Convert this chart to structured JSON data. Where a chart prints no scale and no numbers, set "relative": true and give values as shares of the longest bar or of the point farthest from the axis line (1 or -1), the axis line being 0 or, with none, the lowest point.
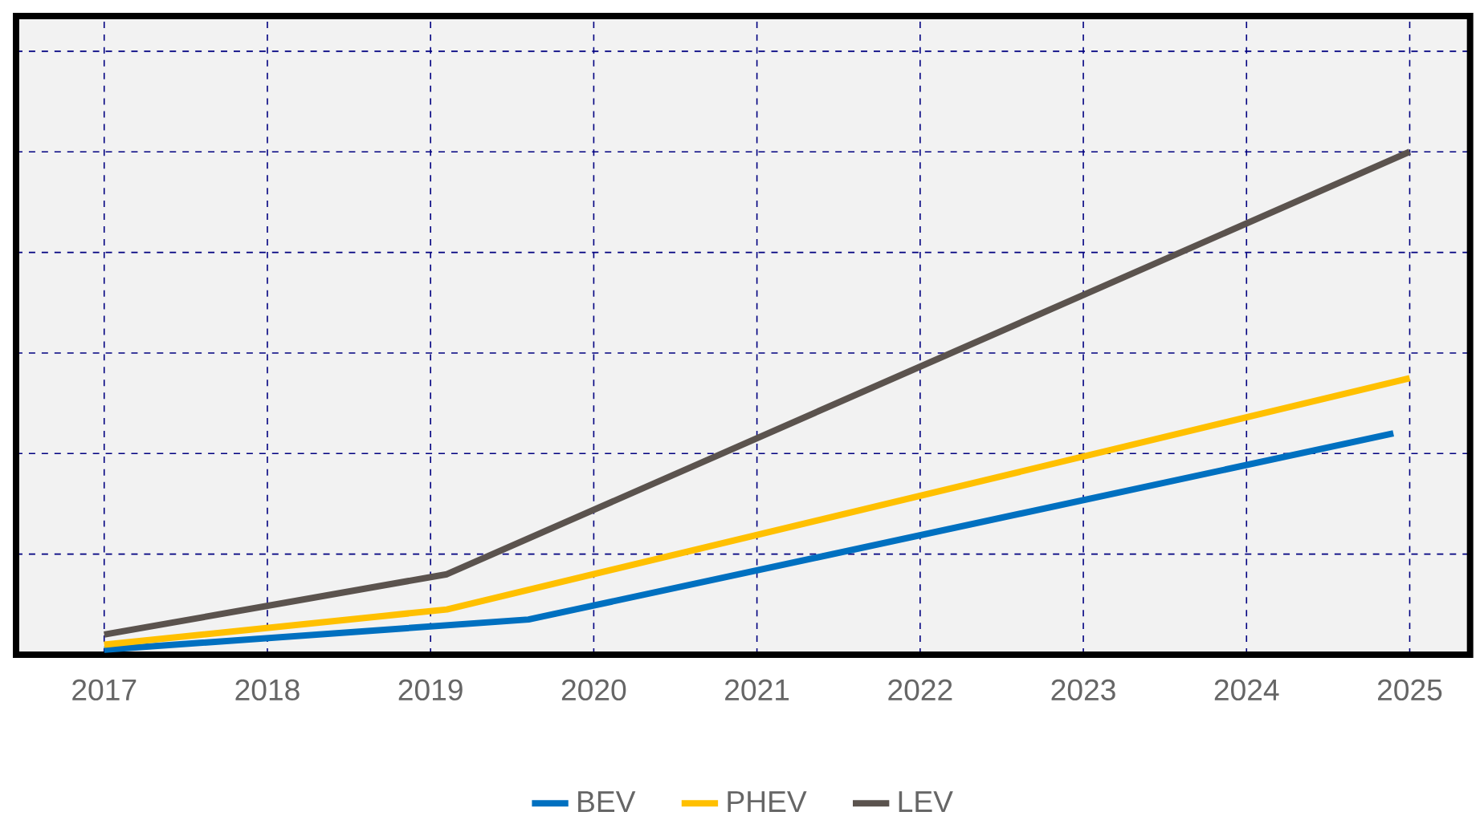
{
  "chart_data": {
    "type": "line",
    "relative": true,
    "xlim": [
      2016.46,
      2025.37
    ],
    "xticks": [
      2017,
      2018,
      2019,
      2020,
      2021,
      2022,
      2023,
      2024,
      2025
    ],
    "grid": true,
    "legend": "bottom",
    "marker": "none",
    "line_style": "solid",
    "series": [
      {
        "name": "BEV",
        "color": "#0070c0",
        "x": [
          2017,
          2019.6,
          2024.9
        ],
        "values": [
          0.01,
          0.07,
          0.44
        ]
      },
      {
        "name": "PHEV",
        "color": "#ffc000",
        "x": [
          2017,
          2019.1,
          2025
        ],
        "values": [
          0.02,
          0.09,
          0.55
        ]
      },
      {
        "name": "LEV",
        "color": "#5b534e",
        "x": [
          2017,
          2019.1,
          2025
        ],
        "values": [
          0.04,
          0.16,
          1
        ]
      }
    ]
  }
}
